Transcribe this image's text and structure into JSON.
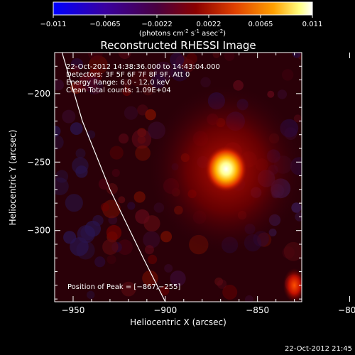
{
  "colorbar": {
    "ticks": [
      "-0.011",
      "-0.0065",
      "-0.0022",
      "0.0022",
      "0.0065",
      "0.011"
    ],
    "unit_label_main": "(photons cm",
    "unit_sup1": "-2",
    "unit_mid": " s",
    "unit_sup2": "-1",
    "unit_mid2": " asec",
    "unit_sup3": "-2",
    "unit_end": ")"
  },
  "chart_data": {
    "type": "heatmap",
    "title": "Reconstructed RHESSI Image",
    "xlabel": "Heliocentric X (arcsec)",
    "ylabel": "Heliocentric Y (arcsec)",
    "xlim": [
      -960,
      -826
    ],
    "ylim": [
      -352,
      -170
    ],
    "x_ticks": [
      -950,
      -900,
      -850,
      -800
    ],
    "x_tick_labels": [
      "−950",
      "−900",
      "−850",
      "−800"
    ],
    "y_ticks": [
      -200,
      -250,
      -300
    ],
    "y_tick_labels": [
      "−200",
      "−250",
      "−300"
    ],
    "color_range": [
      -0.011,
      0.011
    ],
    "colormap": [
      "#0000ff",
      "#3a00a0",
      "#4a0040",
      "#8a0000",
      "#e04000",
      "#ffa000",
      "#ffff80",
      "#ffffff"
    ],
    "peak": [
      -867,
      -255
    ],
    "secondary_source": [
      -830,
      -340
    ],
    "limb_curve": [
      [
        -956,
        -170
      ],
      [
        -945,
        -220
      ],
      [
        -930,
        -270
      ],
      [
        -912,
        -320
      ],
      [
        -900,
        -352
      ]
    ],
    "annotations": [
      "22-Oct-2012 14:38:36.000 to 14:43:04.000",
      "Detectors: 3F 5F 6F 7F 8F 9F, Att 0",
      "Energy Range: 6.0 - 12.0 keV",
      "Clean    Total counts: 1.09E+04"
    ],
    "peak_label": "Position of Peak = [−867,−255]"
  },
  "footer": {
    "timestamp": "22-Oct-2012 21:45"
  }
}
